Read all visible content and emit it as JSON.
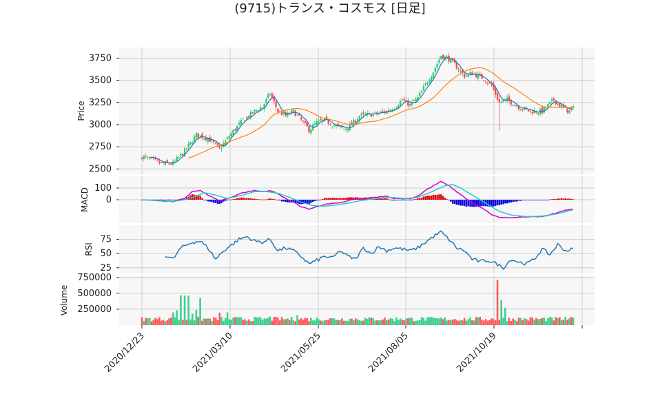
{
  "title": "(9715)トランス・コスモス [日足]",
  "colors": {
    "up": "#2ecc71",
    "down": "#ff4d4d",
    "ma_short": "#1f77b4",
    "ma_long": "#ff7f0e",
    "macd": "#cc00cc",
    "signal": "#22cccc",
    "hist_pos": "#dd0000",
    "hist_neg": "#0000dd",
    "rsi": "#1f77b4",
    "vol_up": "#3ecf8e",
    "vol_down": "#ff5a5a"
  },
  "chart_data": {
    "type": "candlestick",
    "x_ticks": [
      "2020/12/23",
      "2021/03/10",
      "2021/05/25",
      "2021/08/05",
      "2021/10/19"
    ],
    "panels": {
      "price": {
        "ylabel": "Price",
        "yticks": [
          2500,
          2750,
          3000,
          3250,
          3500,
          3750
        ],
        "ylim": [
          2440,
          3870
        ]
      },
      "macd": {
        "ylabel": "MACD",
        "yticks": [
          0,
          100
        ],
        "ylim": [
          -200,
          200
        ]
      },
      "rsi": {
        "ylabel": "RSI",
        "yticks": [
          25,
          50,
          75
        ],
        "ylim": [
          15,
          100
        ]
      },
      "volume": {
        "ylabel": "Volume",
        "yticks": [
          250000,
          500000,
          750000
        ],
        "ylim": [
          0,
          780000
        ]
      }
    },
    "price_close_anchors": [
      [
        0,
        2640
      ],
      [
        10,
        2560
      ],
      [
        16,
        2560
      ],
      [
        22,
        2700
      ],
      [
        28,
        2880
      ],
      [
        34,
        2850
      ],
      [
        40,
        2720
      ],
      [
        46,
        2900
      ],
      [
        52,
        3050
      ],
      [
        58,
        3150
      ],
      [
        62,
        3200
      ],
      [
        66,
        3350
      ],
      [
        70,
        3150
      ],
      [
        74,
        3100
      ],
      [
        78,
        3150
      ],
      [
        82,
        3050
      ],
      [
        86,
        2940
      ],
      [
        90,
        3020
      ],
      [
        94,
        3050
      ],
      [
        100,
        2980
      ],
      [
        104,
        2950
      ],
      [
        108,
        3000
      ],
      [
        112,
        3100
      ],
      [
        120,
        3120
      ],
      [
        126,
        3150
      ],
      [
        130,
        3200
      ],
      [
        134,
        3280
      ],
      [
        138,
        3220
      ],
      [
        142,
        3300
      ],
      [
        146,
        3450
      ],
      [
        150,
        3600
      ],
      [
        154,
        3780
      ],
      [
        158,
        3740
      ],
      [
        162,
        3650
      ],
      [
        166,
        3550
      ],
      [
        170,
        3580
      ],
      [
        176,
        3520
      ],
      [
        180,
        3440
      ],
      [
        184,
        3250
      ],
      [
        188,
        3280
      ],
      [
        194,
        3200
      ],
      [
        200,
        3150
      ],
      [
        206,
        3150
      ],
      [
        212,
        3280
      ],
      [
        216,
        3200
      ],
      [
        220,
        3150
      ],
      [
        222,
        3180
      ]
    ],
    "macd_anchors": [
      [
        0,
        0
      ],
      [
        10,
        -10
      ],
      [
        16,
        -15
      ],
      [
        22,
        10
      ],
      [
        26,
        70
      ],
      [
        30,
        80
      ],
      [
        34,
        40
      ],
      [
        40,
        -10
      ],
      [
        46,
        20
      ],
      [
        52,
        60
      ],
      [
        58,
        80
      ],
      [
        62,
        70
      ],
      [
        66,
        80
      ],
      [
        70,
        50
      ],
      [
        74,
        10
      ],
      [
        78,
        -20
      ],
      [
        82,
        -60
      ],
      [
        86,
        -80
      ],
      [
        90,
        -60
      ],
      [
        94,
        -40
      ],
      [
        100,
        -30
      ],
      [
        104,
        -20
      ],
      [
        108,
        0
      ],
      [
        112,
        10
      ],
      [
        120,
        20
      ],
      [
        126,
        30
      ],
      [
        130,
        10
      ],
      [
        134,
        10
      ],
      [
        138,
        10
      ],
      [
        142,
        30
      ],
      [
        146,
        80
      ],
      [
        150,
        120
      ],
      [
        154,
        155
      ],
      [
        158,
        120
      ],
      [
        162,
        70
      ],
      [
        166,
        20
      ],
      [
        170,
        -30
      ],
      [
        176,
        -80
      ],
      [
        180,
        -130
      ],
      [
        184,
        -150
      ],
      [
        190,
        -155
      ],
      [
        196,
        -145
      ],
      [
        202,
        -145
      ],
      [
        208,
        -140
      ],
      [
        214,
        -110
      ],
      [
        218,
        -90
      ],
      [
        222,
        -80
      ]
    ],
    "signal_anchors": [
      [
        0,
        0
      ],
      [
        10,
        -10
      ],
      [
        16,
        -15
      ],
      [
        22,
        0
      ],
      [
        28,
        30
      ],
      [
        32,
        60
      ],
      [
        38,
        40
      ],
      [
        44,
        10
      ],
      [
        52,
        40
      ],
      [
        58,
        70
      ],
      [
        64,
        70
      ],
      [
        70,
        55
      ],
      [
        76,
        20
      ],
      [
        82,
        -20
      ],
      [
        88,
        -50
      ],
      [
        94,
        -55
      ],
      [
        100,
        -45
      ],
      [
        106,
        -30
      ],
      [
        112,
        -10
      ],
      [
        120,
        10
      ],
      [
        128,
        20
      ],
      [
        136,
        10
      ],
      [
        142,
        20
      ],
      [
        148,
        60
      ],
      [
        156,
        120
      ],
      [
        160,
        130
      ],
      [
        164,
        100
      ],
      [
        170,
        40
      ],
      [
        178,
        -40
      ],
      [
        184,
        -100
      ],
      [
        190,
        -130
      ],
      [
        198,
        -145
      ],
      [
        206,
        -140
      ],
      [
        214,
        -120
      ],
      [
        222,
        -85
      ]
    ],
    "rsi_anchors": [
      [
        12,
        47
      ],
      [
        16,
        40
      ],
      [
        20,
        60
      ],
      [
        26,
        70
      ],
      [
        30,
        72
      ],
      [
        34,
        60
      ],
      [
        38,
        40
      ],
      [
        42,
        55
      ],
      [
        46,
        65
      ],
      [
        50,
        75
      ],
      [
        54,
        80
      ],
      [
        58,
        72
      ],
      [
        62,
        70
      ],
      [
        66,
        75
      ],
      [
        70,
        55
      ],
      [
        74,
        60
      ],
      [
        78,
        55
      ],
      [
        82,
        45
      ],
      [
        86,
        32
      ],
      [
        90,
        38
      ],
      [
        94,
        45
      ],
      [
        98,
        42
      ],
      [
        102,
        55
      ],
      [
        106,
        45
      ],
      [
        110,
        40
      ],
      [
        114,
        60
      ],
      [
        118,
        50
      ],
      [
        122,
        62
      ],
      [
        126,
        55
      ],
      [
        130,
        60
      ],
      [
        134,
        58
      ],
      [
        138,
        55
      ],
      [
        142,
        60
      ],
      [
        146,
        70
      ],
      [
        150,
        80
      ],
      [
        154,
        88
      ],
      [
        158,
        75
      ],
      [
        162,
        60
      ],
      [
        166,
        55
      ],
      [
        170,
        40
      ],
      [
        174,
        36
      ],
      [
        178,
        38
      ],
      [
        182,
        33
      ],
      [
        186,
        25
      ],
      [
        190,
        40
      ],
      [
        194,
        35
      ],
      [
        198,
        32
      ],
      [
        202,
        40
      ],
      [
        206,
        58
      ],
      [
        210,
        48
      ],
      [
        214,
        66
      ],
      [
        218,
        55
      ],
      [
        222,
        58
      ]
    ]
  }
}
